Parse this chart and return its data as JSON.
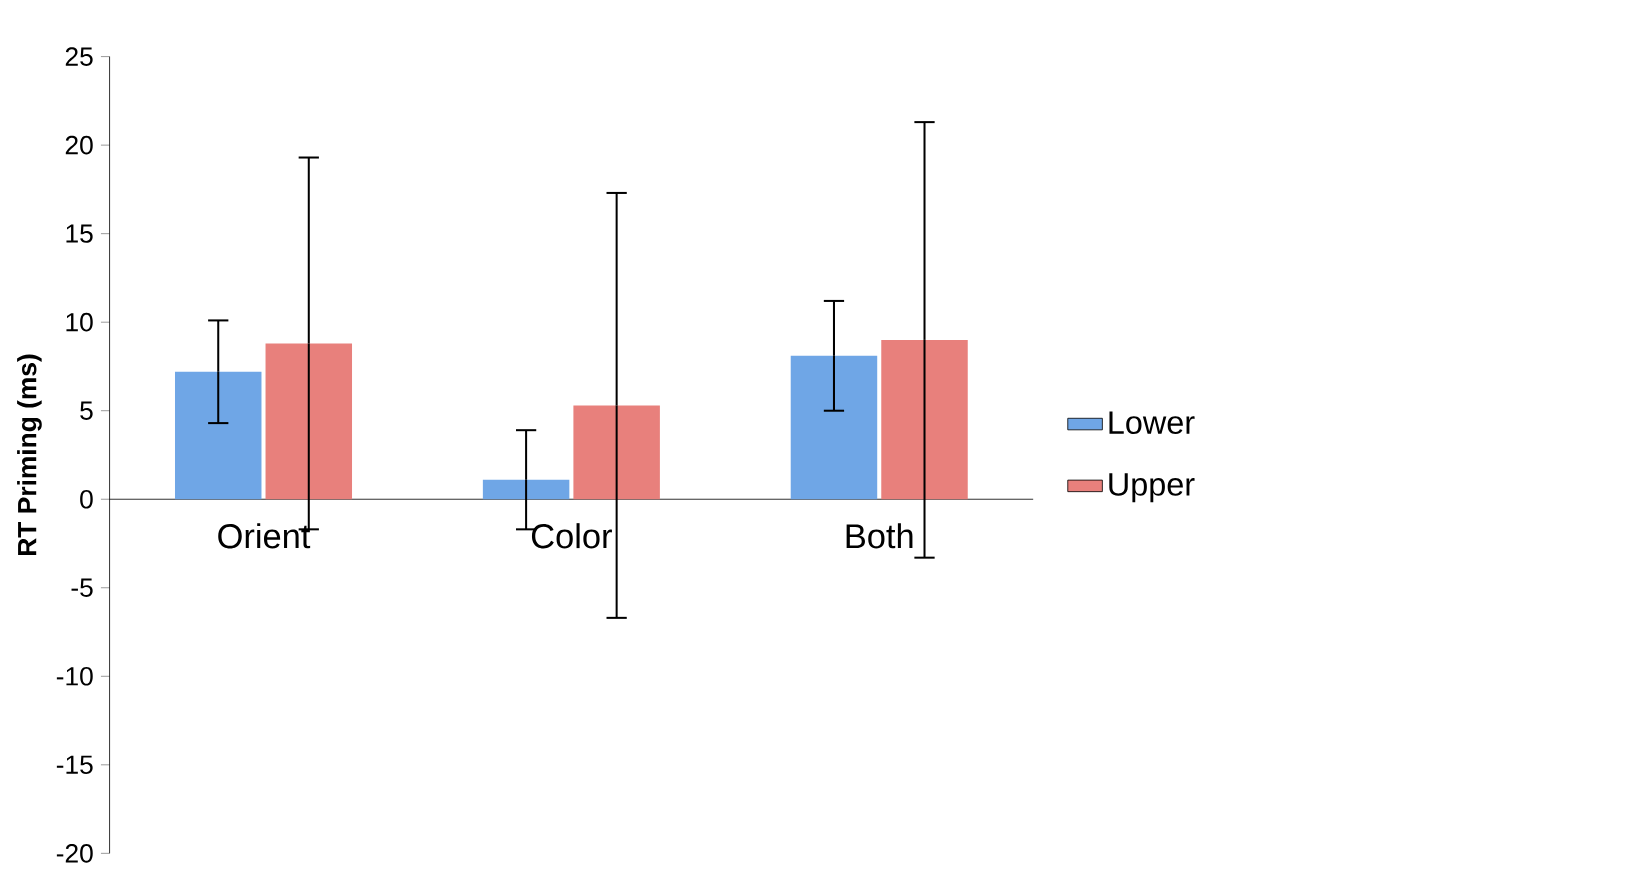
{
  "chart_data": {
    "type": "bar",
    "ylabel": "RT Priming (ms)",
    "categories": [
      "Orient",
      "Color",
      "Both"
    ],
    "series": [
      {
        "name": "Lower",
        "color": "#6fa6e6",
        "values": [
          7.2,
          1.1,
          8.1
        ],
        "errors": [
          2.9,
          2.8,
          3.1
        ]
      },
      {
        "name": "Upper",
        "color": "#e8807c",
        "values": [
          8.8,
          5.3,
          9.0
        ],
        "errors": [
          10.5,
          12.0,
          12.3
        ]
      }
    ],
    "ylim": [
      -20,
      25
    ],
    "yticks": [
      -20,
      -15,
      -10,
      -5,
      0,
      5,
      10,
      15,
      20,
      25
    ],
    "grid": false,
    "legend": "right"
  }
}
